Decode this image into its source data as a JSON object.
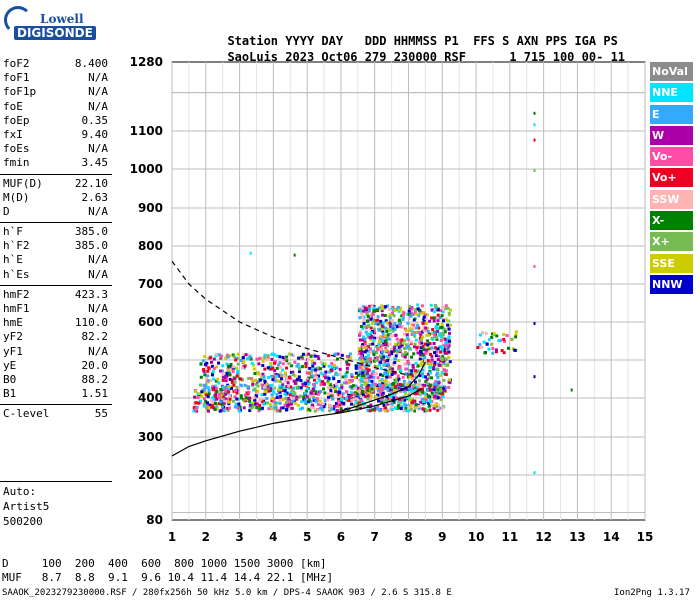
{
  "logo": {
    "line1": "Lowell",
    "line2": "DIGISONDE"
  },
  "header": {
    "labels": [
      "Station",
      "YYYY",
      "DAY",
      "DDD",
      "HHMMSS",
      "P1",
      "FFS",
      "S",
      "AXN",
      "PPS",
      "IGA",
      "PS"
    ],
    "values": [
      "SaoLuis",
      "2023",
      "Oct06",
      "279",
      "230000",
      "RSF",
      "",
      "1",
      "715",
      "100",
      "00-",
      "11"
    ]
  },
  "params": [
    [
      {
        "k": "foF2",
        "v": "8.400"
      },
      {
        "k": "foF1",
        "v": "N/A"
      },
      {
        "k": "foF1p",
        "v": "N/A"
      },
      {
        "k": "foE",
        "v": "N/A"
      },
      {
        "k": "foEp",
        "v": "0.35"
      },
      {
        "k": "fxI",
        "v": "9.40"
      },
      {
        "k": "foEs",
        "v": "N/A"
      },
      {
        "k": "fmin",
        "v": "3.45"
      }
    ],
    [
      {
        "k": "MUF(D)",
        "v": "22.10"
      },
      {
        "k": "M(D)",
        "v": "2.63"
      },
      {
        "k": "D",
        "v": "N/A"
      }
    ],
    [
      {
        "k": "h`F",
        "v": "385.0"
      },
      {
        "k": "h`F2",
        "v": "385.0"
      },
      {
        "k": "h`E",
        "v": "N/A"
      },
      {
        "k": "h`Es",
        "v": "N/A"
      }
    ],
    [
      {
        "k": "hmF2",
        "v": "423.3"
      },
      {
        "k": "hmF1",
        "v": "N/A"
      },
      {
        "k": "hmE",
        "v": "110.0"
      },
      {
        "k": "yF2",
        "v": "82.2"
      },
      {
        "k": "yF1",
        "v": "N/A"
      },
      {
        "k": "yE",
        "v": "20.0"
      },
      {
        "k": "B0",
        "v": "88.2"
      },
      {
        "k": "B1",
        "v": "1.51"
      }
    ],
    [
      {
        "k": "C-level",
        "v": "55"
      }
    ]
  ],
  "auto": [
    "Auto:",
    "Artist5",
    "500200"
  ],
  "legend": [
    {
      "label": "NoVal",
      "color": "#8c8c8c"
    },
    {
      "label": "NNE",
      "color": "#00e5ff"
    },
    {
      "label": "E",
      "color": "#33aaff"
    },
    {
      "label": "W",
      "color": "#aa00aa"
    },
    {
      "label": "Vo-",
      "color": "#ff4da6"
    },
    {
      "label": "Vo+",
      "color": "#ee0022"
    },
    {
      "label": "SSW",
      "color": "#ffb3b3"
    },
    {
      "label": "X-",
      "color": "#008000"
    },
    {
      "label": "X+",
      "color": "#77bb55"
    },
    {
      "label": "SSE",
      "color": "#cccc00"
    },
    {
      "label": "NNW",
      "color": "#0000cc"
    }
  ],
  "bottom": {
    "d_row": "D     100  200  400  600  800 1000 1500 3000 [km]",
    "muf_row": "MUF   8.7  8.8  9.1  9.6 10.4 11.4 14.4 22.1 [MHz]",
    "footer_left": "SAAOK_2023279230000.RSF / 280fx256h 50 kHz 5.0 km / DPS-4 SAAOK 903 / 2.6 S 315.8 E",
    "footer_right": "Ion2Png 1.3.17"
  },
  "chart_data": {
    "type": "scatter",
    "xlabel": "",
    "ylabel": "",
    "xlim": [
      1,
      15
    ],
    "ylim": [
      80,
      1280
    ],
    "x_ticks": [
      1,
      2,
      3,
      4,
      5,
      6,
      7,
      8,
      9,
      10,
      11,
      12,
      13,
      14,
      15
    ],
    "y_ticks": [
      80,
      200,
      300,
      400,
      500,
      600,
      700,
      800,
      900,
      1000,
      1100,
      1280
    ],
    "grid": true,
    "y_scale": "non-linear (compressed toward top)",
    "echo_clusters": [
      {
        "x_range": [
          1.6,
          9.0
        ],
        "y_range": [
          370,
          440
        ],
        "density": "high"
      },
      {
        "x_range": [
          1.8,
          6.8
        ],
        "y_range": [
          440,
          520
        ],
        "density": "medium"
      },
      {
        "x_range": [
          6.5,
          9.2
        ],
        "y_range": [
          420,
          650
        ],
        "density": "high"
      },
      {
        "x_range": [
          10.0,
          11.2
        ],
        "y_range": [
          520,
          580
        ],
        "density": "low"
      }
    ],
    "isolated_points": [
      {
        "x": 3.3,
        "y": 785
      },
      {
        "x": 4.6,
        "y": 780
      },
      {
        "x": 11.7,
        "y": 1150
      },
      {
        "x": 11.7,
        "y": 1120
      },
      {
        "x": 11.7,
        "y": 1080
      },
      {
        "x": 11.7,
        "y": 1000
      },
      {
        "x": 11.7,
        "y": 750
      },
      {
        "x": 11.7,
        "y": 600
      },
      {
        "x": 11.7,
        "y": 460
      },
      {
        "x": 11.7,
        "y": 210
      },
      {
        "x": 12.8,
        "y": 425
      },
      {
        "x": 2.7,
        "y": 480
      },
      {
        "x": 3.7,
        "y": 390
      }
    ],
    "series": [
      {
        "style": "dashed",
        "x": [
          1.0,
          1.5,
          2.0,
          3.0,
          4.0,
          5.0,
          6.0,
          7.0,
          8.0
        ],
        "y": [
          760,
          700,
          660,
          600,
          560,
          530,
          505,
          480,
          460
        ]
      },
      {
        "style": "solid",
        "x": [
          1.0,
          1.5,
          2.0,
          3.0,
          4.0,
          5.0,
          6.0,
          7.0,
          8.0,
          8.4
        ],
        "y": [
          250,
          275,
          290,
          315,
          335,
          350,
          362,
          380,
          405,
          425
        ]
      },
      {
        "style": "solid",
        "x": [
          5.8,
          6.5,
          7.0,
          7.5,
          8.0,
          8.3,
          8.5
        ],
        "y": [
          360,
          380,
          395,
          410,
          430,
          460,
          495
        ]
      }
    ]
  }
}
